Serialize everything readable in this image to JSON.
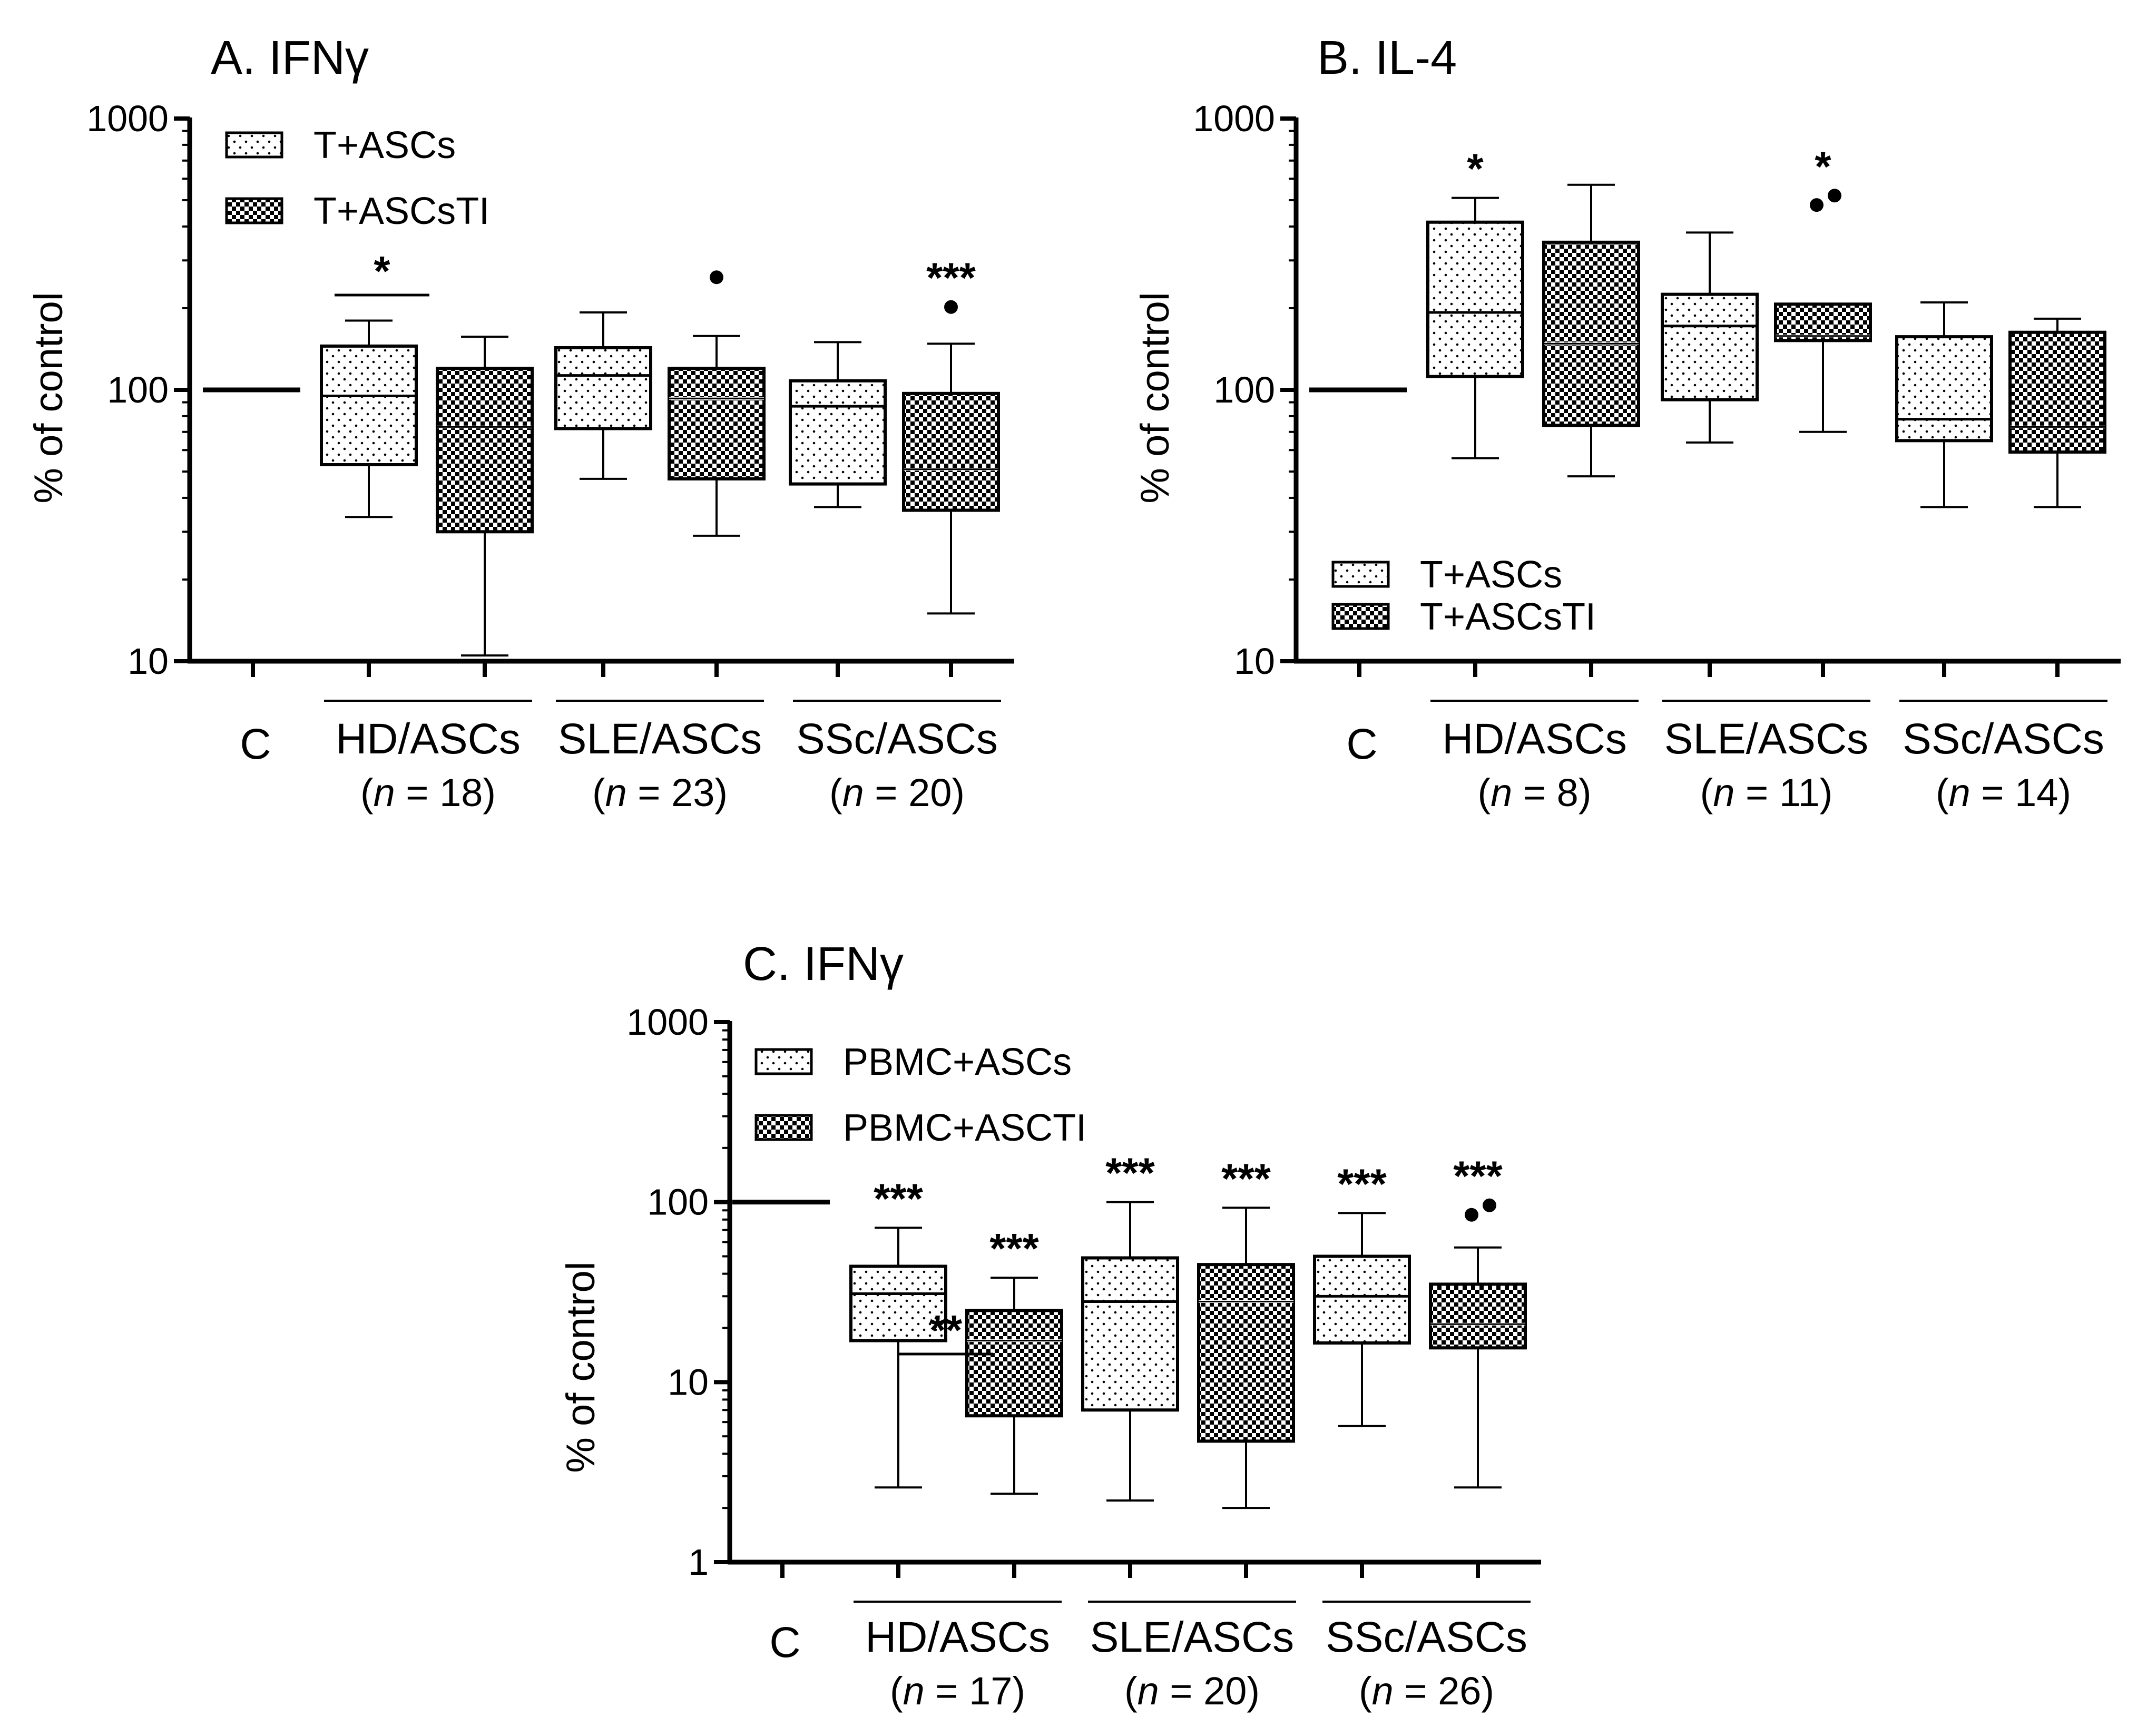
{
  "figure_type": "box plot panels (log scale)",
  "colors": {
    "line": "#000000",
    "box_fill": "#ffffff",
    "checker_dark": "#000000"
  },
  "chart_data": [
    {
      "id": "A",
      "type": "box",
      "title": "A. IFNγ",
      "ylabel": "% of control",
      "yscale": "log",
      "ylim": [
        10,
        1000
      ],
      "yticks": [
        10,
        100,
        1000
      ],
      "ytick_labels": [
        "10",
        "100",
        "1000"
      ],
      "control": {
        "label": "C",
        "value": 100
      },
      "legend": {
        "position": "top-left",
        "entries": [
          {
            "label": "T+ASCs",
            "pattern": "dotted"
          },
          {
            "label": "T+ASCsTI",
            "pattern": "checkered"
          }
        ]
      },
      "groups": [
        {
          "label": "HD/ASCs",
          "n_label": "(n = 18)",
          "n_value": "18"
        },
        {
          "label": "SLE/ASCs",
          "n_label": "(n = 23)",
          "n_value": "23"
        },
        {
          "label": "SSc/ASCs",
          "n_label": "(n = 20)",
          "n_value": "20"
        }
      ],
      "boxes": [
        {
          "group": "HD/ASCs",
          "series": "T+ASCs",
          "min": 34,
          "q1": 53,
          "median": 95,
          "q3": 145,
          "max": 180
        },
        {
          "group": "HD/ASCs",
          "series": "T+ASCsTI",
          "min": 10.5,
          "q1": 30,
          "median": 73,
          "q3": 120,
          "max": 157
        },
        {
          "group": "SLE/ASCs",
          "series": "T+ASCs",
          "min": 47,
          "q1": 72,
          "median": 113,
          "q3": 143,
          "max": 193
        },
        {
          "group": "SLE/ASCs",
          "series": "T+ASCsTI",
          "min": 29,
          "q1": 47,
          "median": 93,
          "q3": 120,
          "max": 158,
          "outliers": [
            260
          ]
        },
        {
          "group": "SSc/ASCs",
          "series": "T+ASCs",
          "min": 37,
          "q1": 45,
          "median": 87,
          "q3": 108,
          "max": 150
        },
        {
          "group": "SSc/ASCs",
          "series": "T+ASCsTI",
          "min": 15,
          "q1": 36,
          "median": 51,
          "q3": 97,
          "max": 148,
          "outliers": [
            202
          ],
          "annotation": "***"
        }
      ],
      "brackets": [
        {
          "between": "HD/ASCs",
          "label": "*"
        }
      ]
    },
    {
      "id": "B",
      "type": "box",
      "title": "B. IL-4",
      "ylabel": "% of control",
      "yscale": "log",
      "ylim": [
        10,
        1000
      ],
      "yticks": [
        10,
        100,
        1000
      ],
      "ytick_labels": [
        "10",
        "100",
        "1000"
      ],
      "control": {
        "label": "C",
        "value": 100
      },
      "legend": {
        "position": "bottom-left",
        "entries": [
          {
            "label": "T+ASCs",
            "pattern": "dotted"
          },
          {
            "label": "T+ASCsTI",
            "pattern": "checkered"
          }
        ]
      },
      "groups": [
        {
          "label": "HD/ASCs",
          "n_label": "(n = 8)",
          "n_value": "8"
        },
        {
          "label": "SLE/ASCs",
          "n_label": "(n = 11)",
          "n_value": "11"
        },
        {
          "label": "SSc/ASCs",
          "n_label": "(n = 14)",
          "n_value": "14"
        }
      ],
      "boxes": [
        {
          "group": "HD/ASCs",
          "series": "T+ASCs",
          "min": 56,
          "q1": 112,
          "median": 193,
          "q3": 415,
          "max": 510,
          "annotation": "*"
        },
        {
          "group": "HD/ASCs",
          "series": "T+ASCsTI",
          "min": 48,
          "q1": 74,
          "median": 148,
          "q3": 350,
          "max": 570
        },
        {
          "group": "SLE/ASCs",
          "series": "T+ASCs",
          "min": 64,
          "q1": 92,
          "median": 172,
          "q3": 225,
          "max": 380
        },
        {
          "group": "SLE/ASCs",
          "series": "T+ASCsTI",
          "min": 70,
          "q1": 152,
          "median": 158,
          "q3": 207,
          "max": 207,
          "outliers": [
            480,
            520
          ],
          "annotation": "*"
        },
        {
          "group": "SSc/ASCs",
          "series": "T+ASCs",
          "min": 37,
          "q1": 65,
          "median": 78,
          "q3": 157,
          "max": 210
        },
        {
          "group": "SSc/ASCs",
          "series": "T+ASCsTI",
          "min": 37,
          "q1": 59,
          "median": 73,
          "q3": 163,
          "max": 183
        }
      ],
      "brackets": []
    },
    {
      "id": "C",
      "type": "box",
      "title": "C. IFNγ",
      "ylabel": "% of control",
      "yscale": "log",
      "ylim": [
        1,
        1000
      ],
      "yticks": [
        1,
        10,
        100,
        1000
      ],
      "ytick_labels": [
        "1",
        "10",
        "100",
        "1000"
      ],
      "control": {
        "label": "C",
        "value": 100
      },
      "legend": {
        "position": "top-left",
        "entries": [
          {
            "label": "PBMC+ASCs",
            "pattern": "dotted"
          },
          {
            "label": "PBMC+ASCTI",
            "pattern": "checkered"
          }
        ]
      },
      "groups": [
        {
          "label": "HD/ASCs",
          "n_label": "(n = 17)",
          "n_value": "17"
        },
        {
          "label": "SLE/ASCs",
          "n_label": "(n = 20)",
          "n_value": "20"
        },
        {
          "label": "SSc/ASCs",
          "n_label": "(n = 26)",
          "n_value": "26"
        }
      ],
      "boxes": [
        {
          "group": "HD/ASCs",
          "series": "PBMC+ASCs",
          "min": 2.6,
          "q1": 17,
          "median": 31,
          "q3": 44,
          "max": 72,
          "annotation": "***"
        },
        {
          "group": "HD/ASCs",
          "series": "PBMC+ASCTI",
          "min": 2.4,
          "q1": 6.5,
          "median": 17,
          "q3": 25,
          "max": 38,
          "annotation": "***"
        },
        {
          "group": "SLE/ASCs",
          "series": "PBMC+ASCs",
          "min": 2.2,
          "q1": 7,
          "median": 28,
          "q3": 49,
          "max": 100,
          "annotation": "***"
        },
        {
          "group": "SLE/ASCs",
          "series": "PBMC+ASCTI",
          "min": 2.0,
          "q1": 4.7,
          "median": 28,
          "q3": 45,
          "max": 93,
          "annotation": "***"
        },
        {
          "group": "SSc/ASCs",
          "series": "PBMC+ASCs",
          "min": 5.7,
          "q1": 16.5,
          "median": 30,
          "q3": 50,
          "max": 87,
          "annotation": "***"
        },
        {
          "group": "SSc/ASCs",
          "series": "PBMC+ASCTI",
          "min": 2.6,
          "q1": 15.5,
          "median": 21,
          "q3": 35,
          "max": 56,
          "outliers": [
            85,
            96
          ],
          "annotation": "***"
        }
      ],
      "brackets": [
        {
          "between": "HD/ASCs",
          "label": "**"
        }
      ]
    }
  ]
}
